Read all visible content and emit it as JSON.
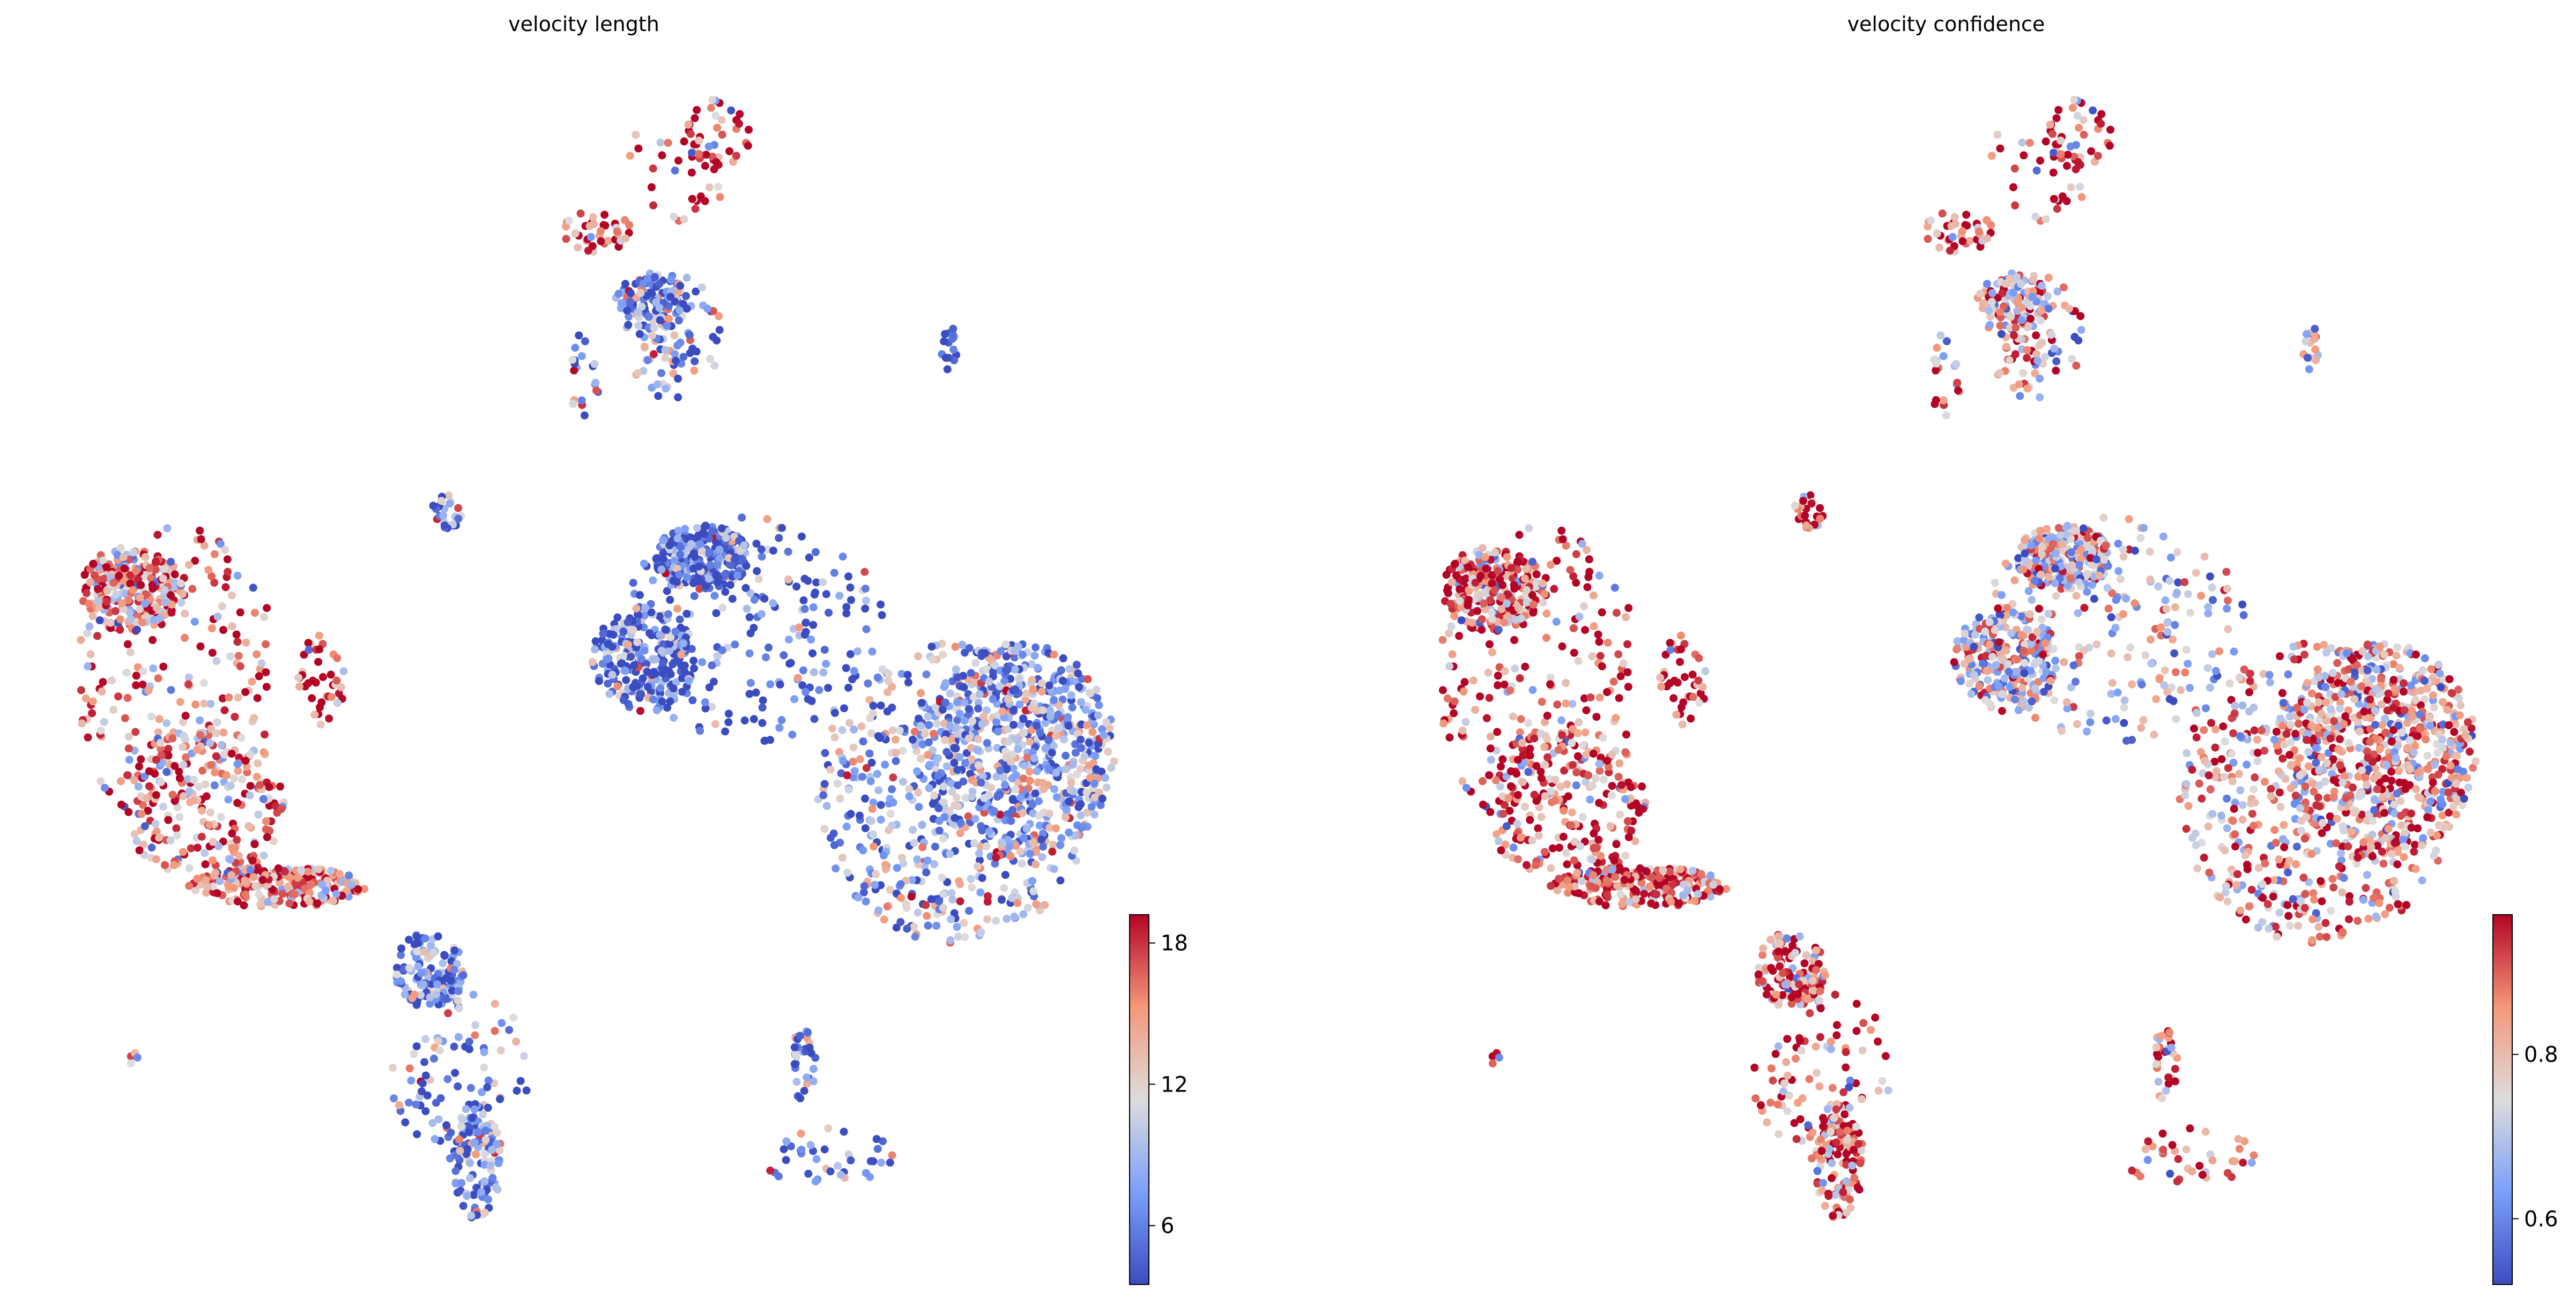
{
  "chart_data": [
    {
      "type": "scatter",
      "title": "velocity length",
      "xlabel": "",
      "ylabel": "",
      "colormap": "coolwarm",
      "colorbar": {
        "ticks": [
          6,
          12,
          18
        ],
        "range": [
          3.5,
          19.2
        ]
      },
      "grid": false,
      "axes_visible": false,
      "clusters": [
        {
          "name": "top cluster (upper arm)",
          "level": 18.5
        },
        {
          "name": "top cluster (lower body)",
          "level": 6.5
        },
        {
          "name": "top tail",
          "level": 8.0
        },
        {
          "name": "small right island",
          "level": 5.0
        },
        {
          "name": "small center island",
          "level": 6.0
        },
        {
          "name": "left cluster",
          "level": 15.0
        },
        {
          "name": "left side lobe",
          "level": 17.0
        },
        {
          "name": "large right cluster (upper-left)",
          "level": 4.2
        },
        {
          "name": "large right cluster (lower-right)",
          "level": 8.0
        },
        {
          "name": "center-bottom cluster",
          "level": 6.5
        },
        {
          "name": "lower-right arc",
          "level": 5.5
        },
        {
          "name": "tiny far-left dot",
          "level": 8.0
        }
      ]
    },
    {
      "type": "scatter",
      "title": "velocity confidence",
      "xlabel": "",
      "ylabel": "",
      "colormap": "coolwarm",
      "colorbar": {
        "ticks": [
          0.6,
          0.8
        ],
        "range": [
          0.52,
          0.97
        ]
      },
      "grid": false,
      "axes_visible": false,
      "clusters": [
        {
          "name": "top cluster (upper arm)",
          "level": 0.94
        },
        {
          "name": "top cluster (lower body)",
          "level": 0.78
        },
        {
          "name": "top tail",
          "level": 0.9
        },
        {
          "name": "small right island",
          "level": 0.82
        },
        {
          "name": "small center island",
          "level": 0.9
        },
        {
          "name": "left cluster",
          "level": 0.9
        },
        {
          "name": "left side lobe",
          "level": 0.93
        },
        {
          "name": "large right cluster (upper-left)",
          "level": 0.74
        },
        {
          "name": "large right cluster (lower-right)",
          "level": 0.82
        },
        {
          "name": "center-bottom cluster",
          "level": 0.9
        },
        {
          "name": "lower-right arc",
          "level": 0.88
        },
        {
          "name": "tiny far-left dot",
          "level": 0.8
        }
      ]
    }
  ]
}
